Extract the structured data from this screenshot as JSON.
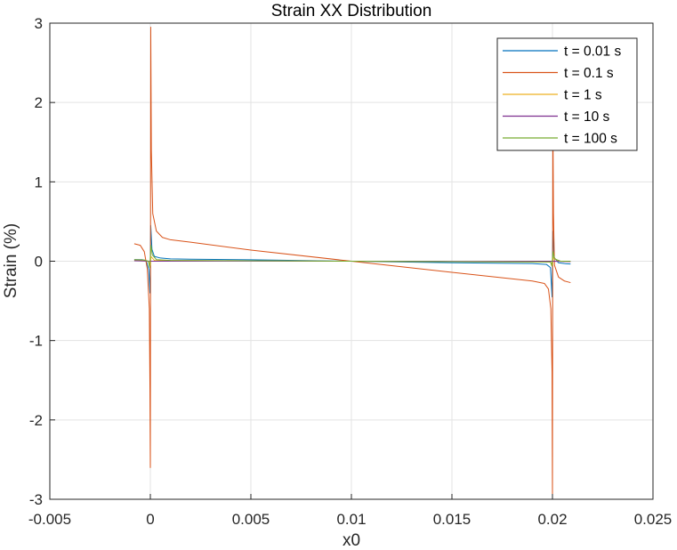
{
  "chart_data": {
    "type": "line",
    "title": "Strain XX Distribution",
    "xlabel": "x0",
    "ylabel": "Strain (%)",
    "xlim": [
      -0.005,
      0.025
    ],
    "ylim": [
      -3,
      3
    ],
    "xticks": [
      -0.005,
      0,
      0.005,
      0.01,
      0.015,
      0.02,
      0.025
    ],
    "xtick_labels": [
      "-0.005",
      "0",
      "0.005",
      "0.01",
      "0.015",
      "0.02",
      "0.025"
    ],
    "yticks": [
      -3,
      -2,
      -1,
      0,
      1,
      2,
      3
    ],
    "ytick_labels": [
      "-3",
      "-2",
      "-1",
      "0",
      "1",
      "2",
      "3"
    ],
    "grid": true,
    "legend_position": "top-right",
    "series": [
      {
        "name": "t = 0.01 s",
        "color": "#0072BD",
        "points": [
          [
            -0.0008,
            0.02
          ],
          [
            -0.0004,
            0.02
          ],
          [
            -0.0002,
            0.0
          ],
          [
            -8e-05,
            -0.1
          ],
          [
            -2e-05,
            -0.4
          ],
          [
            2e-05,
            0.45
          ],
          [
            8e-05,
            0.15
          ],
          [
            0.0002,
            0.06
          ],
          [
            0.0005,
            0.04
          ],
          [
            0.001,
            0.03
          ],
          [
            0.002,
            0.025
          ],
          [
            0.005,
            0.018
          ],
          [
            0.01,
            0.0
          ],
          [
            0.015,
            -0.02
          ],
          [
            0.019,
            -0.03
          ],
          [
            0.0197,
            -0.04
          ],
          [
            0.0199,
            -0.08
          ],
          [
            0.01998,
            -0.45
          ],
          [
            0.02002,
            0.38
          ],
          [
            0.02008,
            0.05
          ],
          [
            0.0203,
            -0.02
          ],
          [
            0.0206,
            -0.03
          ],
          [
            0.0209,
            -0.035
          ]
        ]
      },
      {
        "name": "t = 0.1 s",
        "color": "#D95319",
        "points": [
          [
            -0.0008,
            0.22
          ],
          [
            -0.0005,
            0.2
          ],
          [
            -0.0003,
            0.12
          ],
          [
            -0.00015,
            -0.1
          ],
          [
            -5e-05,
            -0.6
          ],
          [
            -2e-05,
            -1.6
          ],
          [
            0.0,
            -2.6
          ],
          [
            2e-05,
            2.95
          ],
          [
            5e-05,
            1.4
          ],
          [
            0.00012,
            0.6
          ],
          [
            0.0003,
            0.38
          ],
          [
            0.0006,
            0.3
          ],
          [
            0.001,
            0.27
          ],
          [
            0.002,
            0.24
          ],
          [
            0.005,
            0.14
          ],
          [
            0.01,
            0.0
          ],
          [
            0.015,
            -0.14
          ],
          [
            0.019,
            -0.25
          ],
          [
            0.0196,
            -0.28
          ],
          [
            0.0198,
            -0.35
          ],
          [
            0.01992,
            -0.6
          ],
          [
            0.01998,
            -1.4
          ],
          [
            0.02,
            -2.95
          ],
          [
            0.02002,
            1.85
          ],
          [
            0.02005,
            0.6
          ],
          [
            0.0201,
            -0.05
          ],
          [
            0.0203,
            -0.2
          ],
          [
            0.0206,
            -0.25
          ],
          [
            0.0209,
            -0.27
          ]
        ]
      },
      {
        "name": "t = 1 s",
        "color": "#EDB120",
        "points": [
          [
            -0.0008,
            0.01
          ],
          [
            -0.0001,
            0.0
          ],
          [
            0.0,
            -0.05
          ],
          [
            3e-05,
            0.06
          ],
          [
            0.0002,
            0.01
          ],
          [
            0.005,
            0.005
          ],
          [
            0.01,
            0.0
          ],
          [
            0.015,
            -0.005
          ],
          [
            0.0199,
            -0.01
          ],
          [
            0.02,
            -0.05
          ],
          [
            0.02003,
            0.05
          ],
          [
            0.0203,
            0.0
          ],
          [
            0.0209,
            -0.005
          ]
        ]
      },
      {
        "name": "t = 10 s",
        "color": "#7E2F8E",
        "points": [
          [
            -0.0008,
            0.005
          ],
          [
            0.0,
            0.0
          ],
          [
            0.005,
            0.002
          ],
          [
            0.01,
            0.0
          ],
          [
            0.015,
            -0.002
          ],
          [
            0.02,
            0.0
          ],
          [
            0.0209,
            -0.005
          ]
        ]
      },
      {
        "name": "t = 100 s",
        "color": "#77AC30",
        "points": [
          [
            -0.0008,
            0.02
          ],
          [
            -0.0003,
            0.015
          ],
          [
            -0.0001,
            0.0
          ],
          [
            -3e-05,
            -0.08
          ],
          [
            3e-05,
            0.2
          ],
          [
            0.0001,
            0.08
          ],
          [
            0.0003,
            0.02
          ],
          [
            0.001,
            0.01
          ],
          [
            0.005,
            0.005
          ],
          [
            0.01,
            0.0
          ],
          [
            0.015,
            -0.005
          ],
          [
            0.0199,
            -0.01
          ],
          [
            0.01997,
            -0.06
          ],
          [
            0.02003,
            0.12
          ],
          [
            0.0201,
            0.03
          ],
          [
            0.0204,
            0.0
          ],
          [
            0.0209,
            0.0
          ]
        ]
      }
    ]
  }
}
